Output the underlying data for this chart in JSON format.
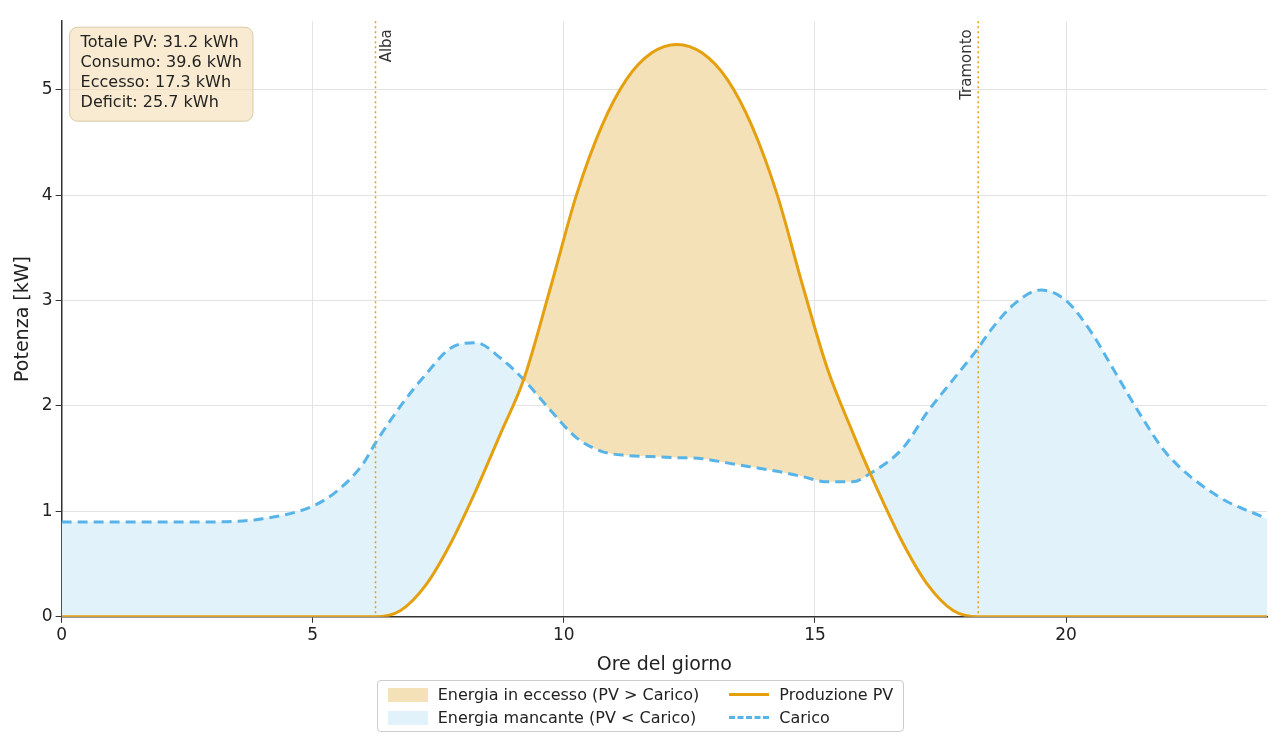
{
  "chart_data": {
    "type": "line",
    "xlabel": "Ore del giorno",
    "ylabel": "Potenza [kW]",
    "x": [
      0,
      1,
      2,
      3,
      4,
      5,
      5.5,
      6,
      6.25,
      6.75,
      7.25,
      7.75,
      8.25,
      8.75,
      9.2,
      9.75,
      10.25,
      10.75,
      11.25,
      11.75,
      12.25,
      12.75,
      13.25,
      13.75,
      14.25,
      14.75,
      15.25,
      15.75,
      16.1,
      16.75,
      17.25,
      17.75,
      18.25,
      18.5,
      19,
      19.5,
      20,
      20.5,
      21,
      21.5,
      22,
      23,
      24
    ],
    "series": [
      {
        "name": "Energia in eccesso (PV > Carico)",
        "type": "area",
        "color": "#f5e1b8",
        "values": [
          null,
          null,
          null,
          null,
          null,
          null,
          null,
          null,
          null,
          null,
          null,
          null,
          null,
          null,
          2.25,
          3.15,
          4.0,
          4.65,
          5.1,
          5.35,
          5.43,
          5.35,
          5.1,
          4.65,
          4.0,
          3.15,
          2.35,
          1.75,
          1.36,
          null,
          null,
          null,
          null,
          null,
          null,
          null,
          null,
          null,
          null,
          null,
          null,
          null,
          null
        ]
      },
      {
        "name": "Energia mancante (PV < Carico)",
        "type": "area",
        "color": "#e2f2fa",
        "values": [
          0.9,
          0.9,
          0.9,
          0.9,
          0.93,
          1.05,
          1.2,
          1.45,
          1.65,
          2.0,
          2.3,
          2.55,
          2.6,
          2.45,
          2.25,
          null,
          null,
          null,
          null,
          null,
          null,
          null,
          null,
          null,
          null,
          null,
          null,
          null,
          1.36,
          1.6,
          1.95,
          2.25,
          2.55,
          2.72,
          2.98,
          3.1,
          3.0,
          2.7,
          2.3,
          1.9,
          1.55,
          1.15,
          0.93
        ]
      },
      {
        "name": "Produzione PV",
        "color": "#e5a00f",
        "line_style": "solid",
        "values": [
          0,
          0,
          0,
          0,
          0,
          0,
          0,
          0,
          0,
          0.06,
          0.3,
          0.7,
          1.2,
          1.75,
          2.25,
          3.15,
          4.0,
          4.65,
          5.1,
          5.35,
          5.43,
          5.35,
          5.1,
          4.65,
          4.0,
          3.15,
          2.35,
          1.75,
          1.36,
          0.7,
          0.3,
          0.06,
          0,
          0,
          0,
          0,
          0,
          0,
          0,
          0,
          0,
          0,
          0
        ]
      },
      {
        "name": "Carico",
        "color": "#56b4e9",
        "line_style": "dashed",
        "values": [
          0.9,
          0.9,
          0.9,
          0.9,
          0.93,
          1.05,
          1.2,
          1.45,
          1.65,
          2.0,
          2.3,
          2.55,
          2.6,
          2.45,
          2.25,
          1.95,
          1.7,
          1.57,
          1.53,
          1.52,
          1.51,
          1.5,
          1.46,
          1.42,
          1.38,
          1.33,
          1.28,
          1.28,
          1.36,
          1.6,
          1.95,
          2.25,
          2.55,
          2.72,
          2.98,
          3.1,
          3.0,
          2.7,
          2.3,
          1.9,
          1.55,
          1.15,
          0.93
        ]
      }
    ],
    "xlim": [
      0,
      24
    ],
    "xticks": [
      0,
      5,
      10,
      15,
      20
    ],
    "ylim": [
      0,
      5.65
    ],
    "yticks": [
      0,
      1,
      2,
      3,
      4,
      5
    ],
    "ref_lines": [
      {
        "axis": "x",
        "value": 6.25,
        "label": "Alba",
        "color": "#e5a00f",
        "line_style": "dotted"
      },
      {
        "axis": "x",
        "value": 18.25,
        "label": "Tramonto",
        "color": "#e5a00f",
        "line_style": "dotted"
      }
    ],
    "annotations": [
      "Totale PV: 31.2 kWh",
      "Consumo: 39.6 kWh",
      "Eccesso: 17.3 kWh",
      "Deficit: 25.7 kWh"
    ],
    "grid": true,
    "legend": "bottom",
    "marker": "none"
  }
}
